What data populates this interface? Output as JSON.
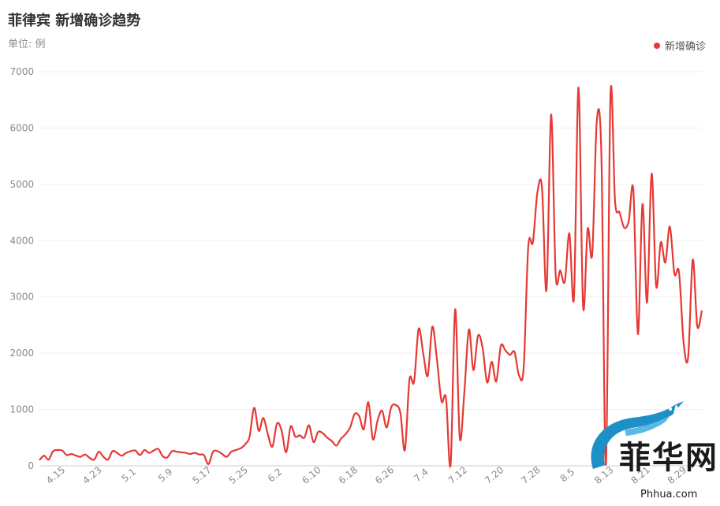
{
  "chart_data": {
    "type": "line",
    "title": "菲律宾 新增确诊趋势",
    "subtitle": "单位: 例",
    "series": [
      {
        "name": "新增确诊",
        "color": "#e53935",
        "values": [
          100,
          180,
          110,
          260,
          280,
          270,
          190,
          210,
          180,
          160,
          200,
          140,
          110,
          250,
          160,
          110,
          260,
          230,
          180,
          230,
          260,
          270,
          190,
          280,
          230,
          270,
          300,
          170,
          150,
          260,
          250,
          240,
          230,
          210,
          230,
          200,
          190,
          30,
          250,
          260,
          210,
          160,
          250,
          280,
          310,
          380,
          520,
          1030,
          620,
          850,
          560,
          340,
          750,
          630,
          240,
          700,
          520,
          540,
          500,
          720,
          420,
          600,
          580,
          500,
          440,
          360,
          480,
          560,
          680,
          920,
          880,
          650,
          1130,
          470,
          800,
          980,
          680,
          1040,
          1080,
          940,
          280,
          1530,
          1490,
          2430,
          2000,
          1600,
          2470,
          1900,
          1150,
          1200,
          20,
          2780,
          500,
          1300,
          2420,
          1700,
          2310,
          2100,
          1480,
          1850,
          1500,
          2130,
          2050,
          1970,
          2020,
          1600,
          1750,
          3900,
          3970,
          4850,
          4950,
          3120,
          6240,
          3400,
          3470,
          3270,
          4130,
          2990,
          6720,
          2830,
          4210,
          3760,
          6130,
          5530,
          20,
          6590,
          4700,
          4500,
          4230,
          4350,
          4900,
          2340,
          4650,
          2900,
          5190,
          3190,
          3970,
          3610,
          4250,
          3410,
          3440,
          2190,
          1930,
          3660,
          2480,
          2760
        ]
      }
    ],
    "x_ticks": [
      "4.15",
      "4.23",
      "5.1",
      "5.9",
      "5.17",
      "5.25",
      "6.2",
      "6.10",
      "6.18",
      "6.26",
      "7.4",
      "7.12",
      "7.20",
      "7.28",
      "8.5",
      "8.13",
      "8.21",
      "8.29"
    ],
    "ylim": [
      0,
      7000
    ],
    "y_ticks": [
      "0",
      "1000",
      "2000",
      "3000",
      "4000",
      "5000",
      "6000",
      "7000"
    ],
    "grid": true,
    "legend_position": "top-right"
  },
  "watermark": {
    "brand": "菲华网",
    "url": "Phhua.com"
  }
}
